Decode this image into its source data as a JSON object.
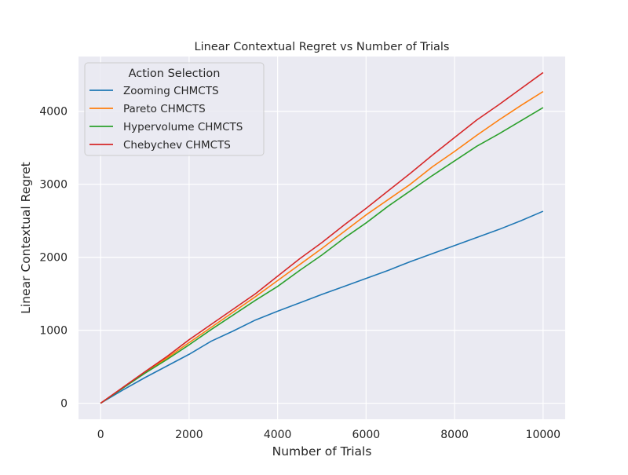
{
  "chart_data": {
    "type": "line",
    "title": "Linear Contextual Regret vs Number of Trials",
    "xlabel": "Number of Trials",
    "ylabel": "Linear Contextual Regret",
    "xlim": [
      -500,
      10500
    ],
    "ylim": [
      -220,
      4750
    ],
    "xticks": [
      0,
      2000,
      4000,
      6000,
      8000,
      10000
    ],
    "yticks": [
      0,
      1000,
      2000,
      3000,
      4000
    ],
    "grid": true,
    "legend": {
      "title": "Action Selection",
      "placement": "top-left"
    },
    "x": [
      0,
      500,
      1000,
      1500,
      2000,
      2500,
      3000,
      3500,
      4000,
      4500,
      5000,
      5500,
      6000,
      6500,
      7000,
      7500,
      8000,
      8500,
      9000,
      9500,
      10000
    ],
    "series": [
      {
        "name": "Zooming CHMCTS",
        "color": "#1f77b4",
        "values": [
          0,
          180,
          350,
          510,
          670,
          850,
          990,
          1140,
          1260,
          1375,
          1490,
          1600,
          1710,
          1820,
          1940,
          2050,
          2160,
          2270,
          2380,
          2500,
          2630
        ]
      },
      {
        "name": "Pareto CHMCTS",
        "color": "#ff7f0e",
        "values": [
          0,
          210,
          420,
          620,
          830,
          1040,
          1250,
          1460,
          1680,
          1900,
          2120,
          2350,
          2580,
          2790,
          3000,
          3240,
          3450,
          3670,
          3880,
          4080,
          4270
        ]
      },
      {
        "name": "Hypervolume CHMCTS",
        "color": "#2ca02c",
        "values": [
          0,
          205,
          410,
          600,
          800,
          1010,
          1210,
          1410,
          1600,
          1820,
          2030,
          2260,
          2470,
          2700,
          2910,
          3120,
          3320,
          3520,
          3690,
          3870,
          4050
        ]
      },
      {
        "name": "Chebychev CHMCTS",
        "color": "#d62728",
        "values": [
          0,
          215,
          430,
          640,
          870,
          1080,
          1290,
          1500,
          1740,
          1980,
          2200,
          2440,
          2670,
          2910,
          3150,
          3400,
          3640,
          3880,
          4090,
          4310,
          4530
        ]
      }
    ]
  },
  "style": {
    "plot_bg": "#eaeaf2",
    "grid_color": "#ffffff",
    "text_color": "#262626",
    "legend_bg": "#eaeaf2",
    "legend_border": "#cccccc"
  }
}
